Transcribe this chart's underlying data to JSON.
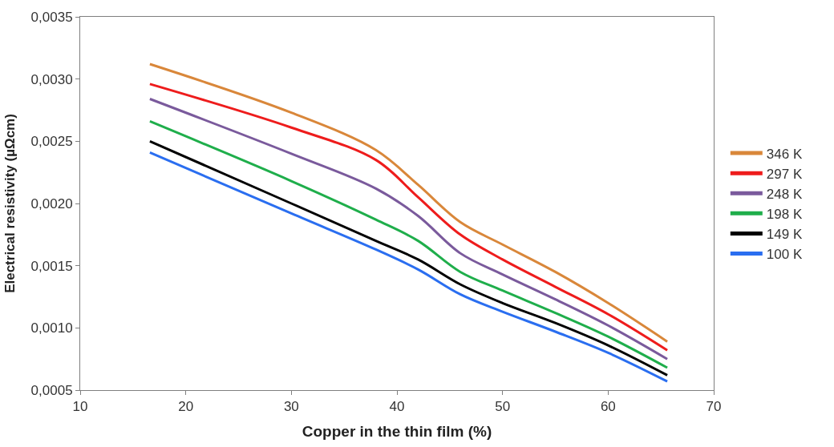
{
  "chart_data": {
    "type": "line",
    "xlabel": "Copper in the thin film (%)",
    "ylabel": "Electrical resistivity (µΩcm)",
    "x": [
      16.6,
      30,
      38,
      42,
      46,
      50,
      55,
      60,
      65.6
    ],
    "series": [
      {
        "name": "346 K",
        "color": "#d9873a",
        "values": [
          0.00312,
          0.00273,
          0.00243,
          0.00215,
          0.00185,
          0.00167,
          0.00145,
          0.0012,
          0.00089
        ]
      },
      {
        "name": "297 K",
        "color": "#ee1c1c",
        "values": [
          0.00296,
          0.00261,
          0.00235,
          0.00205,
          0.00175,
          0.00155,
          0.00133,
          0.00111,
          0.00082
        ]
      },
      {
        "name": "248 K",
        "color": "#7a5a9c",
        "values": [
          0.00284,
          0.0024,
          0.00212,
          0.0019,
          0.0016,
          0.00143,
          0.00123,
          0.00102,
          0.00075
        ]
      },
      {
        "name": "198 K",
        "color": "#1fae4b",
        "values": [
          0.00266,
          0.00218,
          0.00187,
          0.0017,
          0.00145,
          0.0013,
          0.00112,
          0.00093,
          0.00068
        ]
      },
      {
        "name": "149 K",
        "color": "#000000",
        "values": [
          0.0025,
          0.002,
          0.0017,
          0.00155,
          0.00135,
          0.0012,
          0.00104,
          0.00086,
          0.00062
        ]
      },
      {
        "name": "100 K",
        "color": "#2a6ef0",
        "values": [
          0.00241,
          0.00192,
          0.00163,
          0.00147,
          0.00127,
          0.00113,
          0.00097,
          0.0008,
          0.00057
        ]
      }
    ],
    "xlim": [
      10,
      70
    ],
    "xticks": [
      10,
      20,
      30,
      40,
      50,
      60,
      70
    ],
    "ylim": [
      0.0005,
      0.0035
    ],
    "yticks": [
      {
        "value": 0.0005,
        "label": "0,0005"
      },
      {
        "value": 0.001,
        "label": "0,0010"
      },
      {
        "value": 0.0015,
        "label": "0,0015"
      },
      {
        "value": 0.002,
        "label": "0,0020"
      },
      {
        "value": 0.0025,
        "label": "0,0025"
      },
      {
        "value": 0.003,
        "label": "0,0030"
      },
      {
        "value": 0.0035,
        "label": "0,0035"
      }
    ],
    "legend": "right",
    "marker": "none",
    "line_style": "solid"
  }
}
